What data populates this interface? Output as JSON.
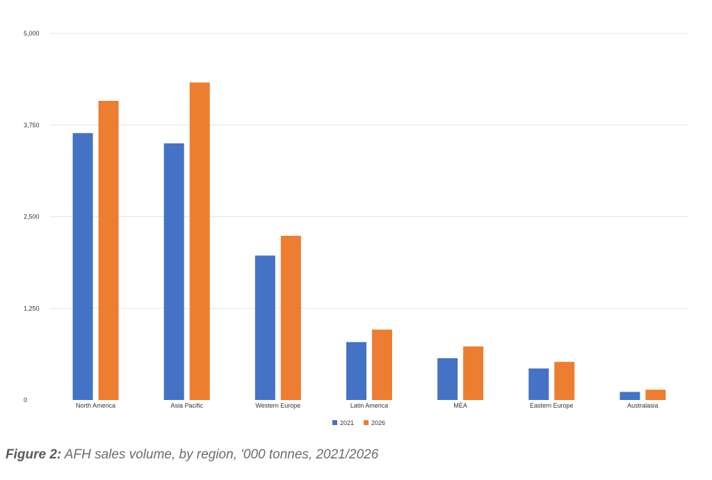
{
  "chart_data": {
    "type": "bar",
    "categories": [
      "North America",
      "Asia Pacific",
      "Western Europe",
      "Latin America",
      "MEA",
      "Eastern Europe",
      "Australasia"
    ],
    "series": [
      {
        "name": "2021",
        "color": "#4472c4",
        "values": [
          3640,
          3500,
          1970,
          790,
          570,
          430,
          110
        ]
      },
      {
        "name": "2026",
        "color": "#ed7d31",
        "values": [
          4080,
          4330,
          2240,
          960,
          730,
          520,
          140
        ]
      }
    ],
    "ylim": [
      0,
      5000
    ],
    "yticks": [
      0,
      1250,
      2500,
      3750,
      5000
    ],
    "ytick_labels": [
      "0",
      "1,250",
      "2,500",
      "3,750",
      "5,000"
    ],
    "grid": true,
    "legend_position": "bottom"
  },
  "caption": {
    "prefix": "Figure 2:",
    "text": " AFH sales volume, by region, '000 tonnes, 2021/2026"
  }
}
